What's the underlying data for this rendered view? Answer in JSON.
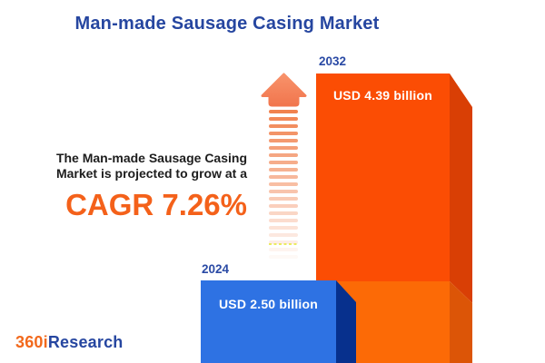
{
  "title": "Man-made Sausage Casing Market",
  "annotation": {
    "line1": "The Man-made Sausage Casing",
    "line2": "Market is projected to grow at a",
    "cagr": "CAGR 7.26%"
  },
  "chart_data": {
    "type": "bar",
    "title": "Man-made Sausage Casing Market",
    "unit": "USD billion",
    "categories": [
      "2024",
      "2032"
    ],
    "values": [
      2.5,
      4.39
    ],
    "cagr_percent": 7.26,
    "legend": false,
    "grid": false,
    "bars": [
      {
        "year": "2024",
        "value": 2.5,
        "value_label": "USD 2.50 billion",
        "face_color": "#2e72e3",
        "side_color": "#07308d"
      },
      {
        "year": "2032",
        "value": 4.39,
        "value_label": "USD 4.39 billion",
        "face_color_top": "#fb4d04",
        "face_color_bottom": "#fc6a06",
        "side_color_top": "#d93f05",
        "side_color_bottom": "#dc5507"
      }
    ]
  },
  "arrow": {
    "meaning": "growth-up-arrow",
    "head_color_top": "#f8926a",
    "head_color_bottom": "#f1764e",
    "dash_color": "#f1824f",
    "dash_count": 21,
    "artifact_line_color": "#e8e83b"
  },
  "logo": {
    "prefix": "360i",
    "suffix": "Research",
    "prefix_color": "#f2691c",
    "suffix_color": "#2646a0"
  },
  "colors": {
    "background": "#ffffff",
    "title_text": "#2646a0",
    "body_text": "#1d1d1d",
    "cagr_text": "#f4611a",
    "year_label_text": "#2a4aa5",
    "bar_value_text": "#ffffff"
  }
}
